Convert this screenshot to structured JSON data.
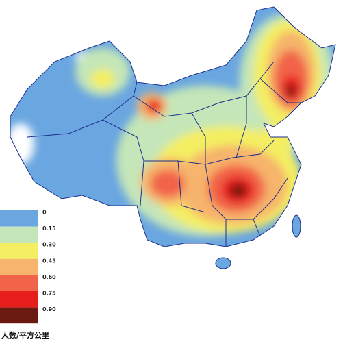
{
  "legend": {
    "title": "人数/平方公里",
    "items": [
      {
        "label": "0",
        "color": "#6aa6e0"
      },
      {
        "label": "0.15",
        "color": "#c4e6b8"
      },
      {
        "label": "0.30",
        "color": "#f4ee62"
      },
      {
        "label": "0.45",
        "color": "#f6b46c"
      },
      {
        "label": "0.60",
        "color": "#f2644a"
      },
      {
        "label": "0.75",
        "color": "#e71f1c"
      },
      {
        "label": "0.90",
        "color": "#6a1a10"
      }
    ]
  }
}
